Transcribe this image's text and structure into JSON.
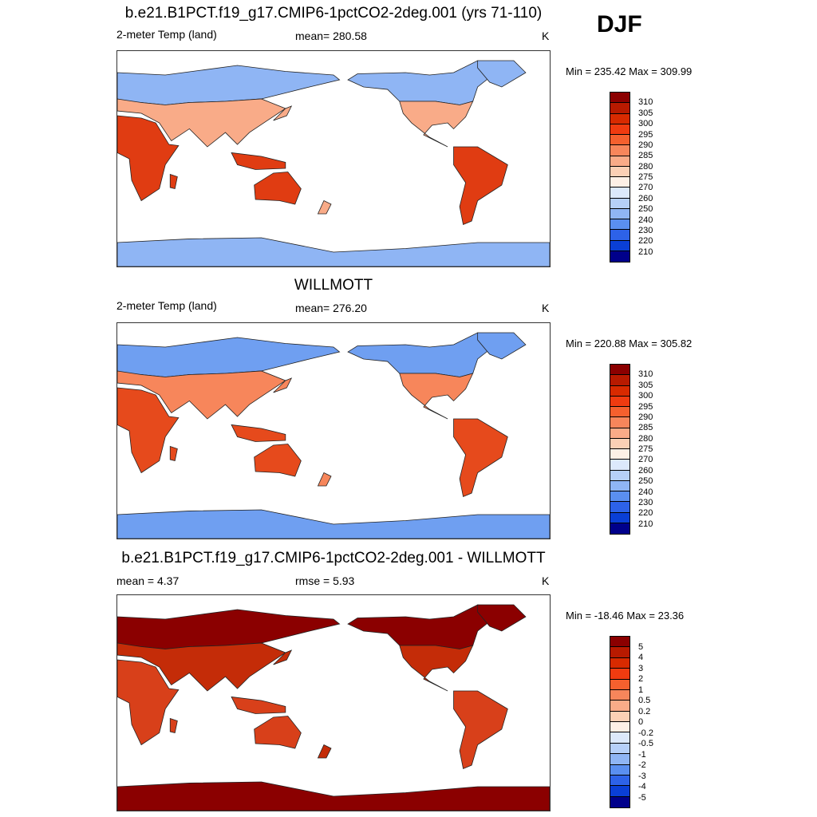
{
  "season": "DJF",
  "panels": [
    {
      "title": "b.e21.B1PCT.f19_g17.CMIP6-1pctCO2-2deg.001 (yrs 71-110)",
      "left_label": "2-meter Temp (land)",
      "center_label": "mean= 280.58",
      "units": "K",
      "minmax": "Min = 235.42 Max = 309.99",
      "scheme": "abs"
    },
    {
      "title": "WILLMOTT",
      "left_label": "2-meter Temp (land)",
      "center_label": "mean= 276.20",
      "units": "K",
      "minmax": "Min = 220.88 Max = 305.82",
      "scheme": "abs"
    },
    {
      "title": "b.e21.B1PCT.f19_g17.CMIP6-1pctCO2-2deg.001 - WILLMOTT",
      "left_label": "mean =   4.37",
      "center_label": "rmse =   5.93",
      "units": "K",
      "minmax": "Min = -18.46 Max =  23.36",
      "scheme": "diff"
    }
  ],
  "colorbar_abs": {
    "ticks": [
      "310",
      "305",
      "300",
      "295",
      "290",
      "285",
      "280",
      "275",
      "270",
      "260",
      "250",
      "240",
      "230",
      "220",
      "210"
    ],
    "colors": [
      "#8b0000",
      "#b81a00",
      "#d82a00",
      "#f03b10",
      "#f5602e",
      "#f7865b",
      "#f9ab88",
      "#fbd0b5",
      "#fdf0e6",
      "#dce9fb",
      "#b6d0f8",
      "#8fb5f4",
      "#5a8ff0",
      "#2d62e8",
      "#0a3fd6",
      "#00008b"
    ]
  },
  "colorbar_diff": {
    "ticks": [
      "5",
      "4",
      "3",
      "2",
      "1",
      "0.5",
      "0.2",
      "0",
      "-0.2",
      "-0.5",
      "-1",
      "-2",
      "-3",
      "-4",
      "-5"
    ],
    "colors": [
      "#8b0000",
      "#b81a00",
      "#d82a00",
      "#f03b10",
      "#f5602e",
      "#f7865b",
      "#f9ab88",
      "#fbd0b5",
      "#fdf0e6",
      "#dce9fb",
      "#b6d0f8",
      "#8fb5f4",
      "#5a8ff0",
      "#2d62e8",
      "#0a3fd6",
      "#00008b"
    ]
  }
}
